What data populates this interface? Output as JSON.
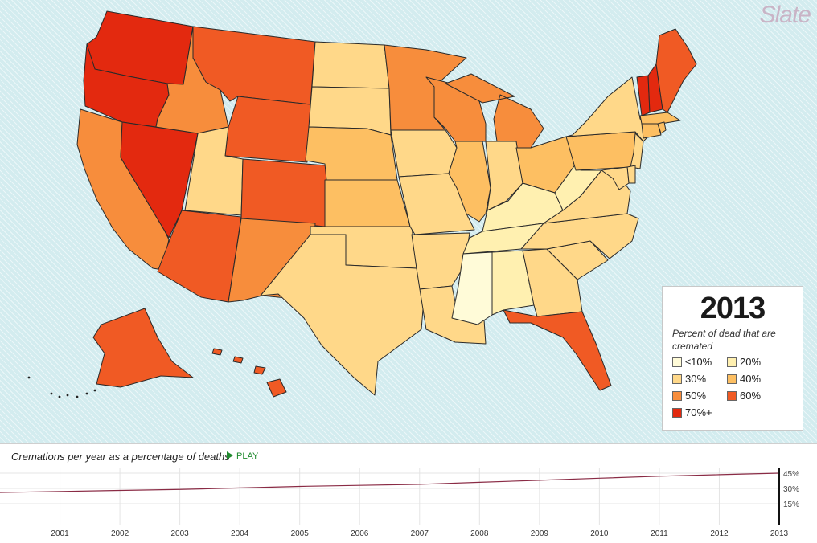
{
  "brand": "Slate",
  "colors": {
    "c10": "#fffbd8",
    "c20": "#fff0b0",
    "c30": "#ffd889",
    "c40": "#fdbf62",
    "c50": "#f78d3c",
    "c60": "#f05a24",
    "c70": "#e3290f",
    "border": "#2a2a2a",
    "ocean": "#d3ecef",
    "trend": "#8a2b45"
  },
  "legend": {
    "year": "2013",
    "description": "Percent of dead that are cremated",
    "items": [
      {
        "label": "≤10%",
        "color": "#fffbd8"
      },
      {
        "label": "20%",
        "color": "#fff0b0"
      },
      {
        "label": "30%",
        "color": "#ffd889"
      },
      {
        "label": "40%",
        "color": "#fdbf62"
      },
      {
        "label": "50%",
        "color": "#f78d3c"
      },
      {
        "label": "60%",
        "color": "#f05a24"
      },
      {
        "label": "70%+",
        "color": "#e3290f"
      }
    ]
  },
  "states": [
    {
      "id": "WA",
      "bin": "70%+"
    },
    {
      "id": "OR",
      "bin": "70%+"
    },
    {
      "id": "NV",
      "bin": "70%+"
    },
    {
      "id": "VT",
      "bin": "70%+"
    },
    {
      "id": "NH",
      "bin": "70%+"
    },
    {
      "id": "MT",
      "bin": "60%"
    },
    {
      "id": "WY",
      "bin": "60%"
    },
    {
      "id": "CO",
      "bin": "60%"
    },
    {
      "id": "AZ",
      "bin": "60%"
    },
    {
      "id": "FL",
      "bin": "60%"
    },
    {
      "id": "ME",
      "bin": "60%"
    },
    {
      "id": "AK",
      "bin": "60%"
    },
    {
      "id": "HI",
      "bin": "60%"
    },
    {
      "id": "ID",
      "bin": "50%"
    },
    {
      "id": "CA",
      "bin": "50%"
    },
    {
      "id": "NM",
      "bin": "50%"
    },
    {
      "id": "MN",
      "bin": "50%"
    },
    {
      "id": "WI",
      "bin": "50%"
    },
    {
      "id": "MI",
      "bin": "50%"
    },
    {
      "id": "NE",
      "bin": "40%"
    },
    {
      "id": "KS",
      "bin": "40%"
    },
    {
      "id": "IL",
      "bin": "40%"
    },
    {
      "id": "OH",
      "bin": "40%"
    },
    {
      "id": "PA",
      "bin": "40%"
    },
    {
      "id": "CT",
      "bin": "40%"
    },
    {
      "id": "MA",
      "bin": "40%"
    },
    {
      "id": "RI",
      "bin": "40%"
    },
    {
      "id": "UT",
      "bin": "30%"
    },
    {
      "id": "ND",
      "bin": "30%"
    },
    {
      "id": "SD",
      "bin": "30%"
    },
    {
      "id": "IA",
      "bin": "30%"
    },
    {
      "id": "MO",
      "bin": "30%"
    },
    {
      "id": "IN",
      "bin": "30%"
    },
    {
      "id": "OK",
      "bin": "30%"
    },
    {
      "id": "TX",
      "bin": "30%"
    },
    {
      "id": "AR",
      "bin": "30%"
    },
    {
      "id": "LA",
      "bin": "30%"
    },
    {
      "id": "GA",
      "bin": "30%"
    },
    {
      "id": "SC",
      "bin": "30%"
    },
    {
      "id": "NC",
      "bin": "30%"
    },
    {
      "id": "VA",
      "bin": "30%"
    },
    {
      "id": "NY",
      "bin": "30%"
    },
    {
      "id": "NJ",
      "bin": "30%"
    },
    {
      "id": "DE",
      "bin": "30%"
    },
    {
      "id": "MD",
      "bin": "30%"
    },
    {
      "id": "KY",
      "bin": "20%"
    },
    {
      "id": "WV",
      "bin": "20%"
    },
    {
      "id": "TN",
      "bin": "20%"
    },
    {
      "id": "AL",
      "bin": "20%"
    },
    {
      "id": "MS",
      "bin": "≤10%"
    }
  ],
  "timeline": {
    "title": "Cremations per year as a percentage of deaths",
    "play_label": "PLAY",
    "selected_year": "2013"
  },
  "chart_data": {
    "type": "line",
    "title": "",
    "xlabel": "",
    "ylabel": "",
    "x": [
      2000,
      2001,
      2002,
      2003,
      2004,
      2005,
      2006,
      2007,
      2008,
      2009,
      2010,
      2011,
      2012,
      2013
    ],
    "series": [
      {
        "values": [
          26,
          27,
          28,
          29,
          30.5,
          32,
          33,
          34,
          36,
          38,
          40,
          42,
          43.5,
          45
        ]
      }
    ],
    "x_tick_labels": [
      "2001",
      "2002",
      "2003",
      "2004",
      "2005",
      "2006",
      "2007",
      "2008",
      "2009",
      "2010",
      "2011",
      "2012",
      "2013"
    ],
    "y_tick_labels": [
      "45%",
      "30%",
      "15%"
    ],
    "y_ticks": [
      45,
      30,
      15
    ],
    "ylim": [
      0,
      45
    ],
    "xlim": [
      2000,
      2013
    ]
  }
}
